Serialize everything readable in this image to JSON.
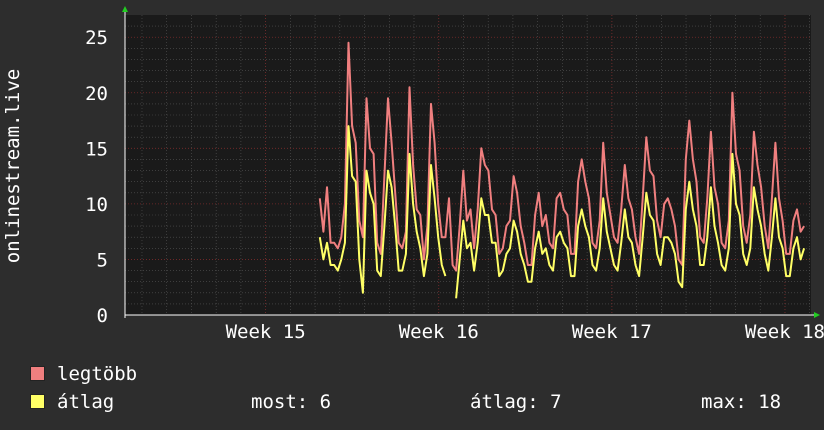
{
  "chart_data": {
    "type": "line",
    "ylabel": "onlinestream.live",
    "ylim": [
      0,
      27
    ],
    "yticks": [
      0,
      5,
      10,
      15,
      20,
      25
    ],
    "xticks": [
      "Week 15",
      "Week 16",
      "Week 17",
      "Week 18"
    ],
    "colors": {
      "background": "#2d2d2d",
      "plot": "#1a1a1a",
      "grid": "#555555",
      "major_grid": "#7a2a2a",
      "arrow": "#22cc22"
    },
    "data_start": 0.284,
    "series": [
      {
        "name": "legtöbb",
        "color": "#f07f7f",
        "values": [
          10.5,
          7.5,
          11.5,
          6.5,
          6.5,
          6.0,
          7.0,
          10.0,
          24.5,
          17.0,
          15.5,
          8.5,
          7.0,
          19.5,
          15.0,
          14.5,
          6.5,
          5.5,
          12.5,
          19.5,
          15.5,
          11.0,
          6.5,
          6.0,
          7.5,
          20.5,
          13.5,
          9.5,
          9.0,
          5.0,
          8.0,
          19.0,
          15.5,
          10.0,
          7.0,
          7.0,
          10.5,
          4.5,
          4.0,
          8.0,
          13.0,
          8.5,
          9.5,
          6.0,
          9.5,
          15.0,
          13.5,
          13.0,
          9.5,
          9.0,
          5.5,
          6.0,
          8.0,
          8.5,
          12.5,
          11.0,
          8.0,
          6.5,
          4.5,
          4.5,
          9.0,
          11.0,
          8.0,
          9.0,
          6.5,
          6.0,
          10.5,
          11.0,
          9.5,
          9.0,
          5.5,
          5.5,
          12.0,
          14.0,
          12.0,
          10.5,
          6.5,
          6.0,
          8.5,
          15.5,
          11.0,
          9.0,
          7.0,
          6.5,
          9.5,
          13.5,
          10.5,
          9.5,
          7.0,
          5.5,
          10.5,
          16.0,
          13.0,
          12.5,
          8.5,
          7.0,
          10.0,
          10.5,
          9.5,
          8.0,
          5.0,
          4.5,
          14.0,
          17.5,
          14.0,
          12.0,
          7.0,
          6.5,
          10.5,
          16.5,
          11.5,
          10.0,
          6.5,
          6.0,
          8.5,
          20.0,
          14.5,
          13.0,
          8.0,
          6.5,
          9.0,
          16.5,
          13.5,
          11.5,
          8.0,
          6.0,
          10.5,
          15.5,
          10.5,
          8.5,
          5.5,
          5.5,
          8.5,
          9.5,
          7.5,
          8.0
        ]
      },
      {
        "name": "átlag",
        "color": "#ffff66",
        "values": [
          7.0,
          5.0,
          6.5,
          4.5,
          4.5,
          4.0,
          5.0,
          6.5,
          17.0,
          12.5,
          12.0,
          5.0,
          2.0,
          13.0,
          11.0,
          10.0,
          4.0,
          3.5,
          8.0,
          13.0,
          11.5,
          8.0,
          4.0,
          4.0,
          5.5,
          14.5,
          10.0,
          7.5,
          6.0,
          3.5,
          5.5,
          13.5,
          10.5,
          7.0,
          4.5,
          3.5,
          7.0,
          2.5,
          1.5,
          5.0,
          8.5,
          6.0,
          6.5,
          4.0,
          6.5,
          10.5,
          9.0,
          9.0,
          6.5,
          6.5,
          3.5,
          4.0,
          5.5,
          6.0,
          8.5,
          7.5,
          5.5,
          4.5,
          3.0,
          3.0,
          6.0,
          7.5,
          5.5,
          6.0,
          4.5,
          4.0,
          7.0,
          7.5,
          6.5,
          6.0,
          3.5,
          3.5,
          8.0,
          9.5,
          8.0,
          7.0,
          4.5,
          4.0,
          6.0,
          10.5,
          7.5,
          6.0,
          4.5,
          4.0,
          6.5,
          9.5,
          7.0,
          6.5,
          4.5,
          3.5,
          7.0,
          11.0,
          9.0,
          8.5,
          5.5,
          4.5,
          7.0,
          7.0,
          6.5,
          5.5,
          3.0,
          2.5,
          9.5,
          12.0,
          9.5,
          8.0,
          4.5,
          4.5,
          7.0,
          11.5,
          8.0,
          6.5,
          4.5,
          4.0,
          6.0,
          14.5,
          10.0,
          9.0,
          5.5,
          4.5,
          6.0,
          11.5,
          9.5,
          8.0,
          5.5,
          4.0,
          7.0,
          10.5,
          7.0,
          6.0,
          3.5,
          3.5,
          6.0,
          7.0,
          5.0,
          6.0
        ]
      }
    ],
    "gaps": [
      {
        "series": 1,
        "after_index": 35,
        "gap_to": 38
      }
    ]
  },
  "legend": {
    "max_label": "legtöbb",
    "avg_label": "átlag",
    "most": "most: 6",
    "atlag": "átlag: 7",
    "max": "max: 18"
  }
}
